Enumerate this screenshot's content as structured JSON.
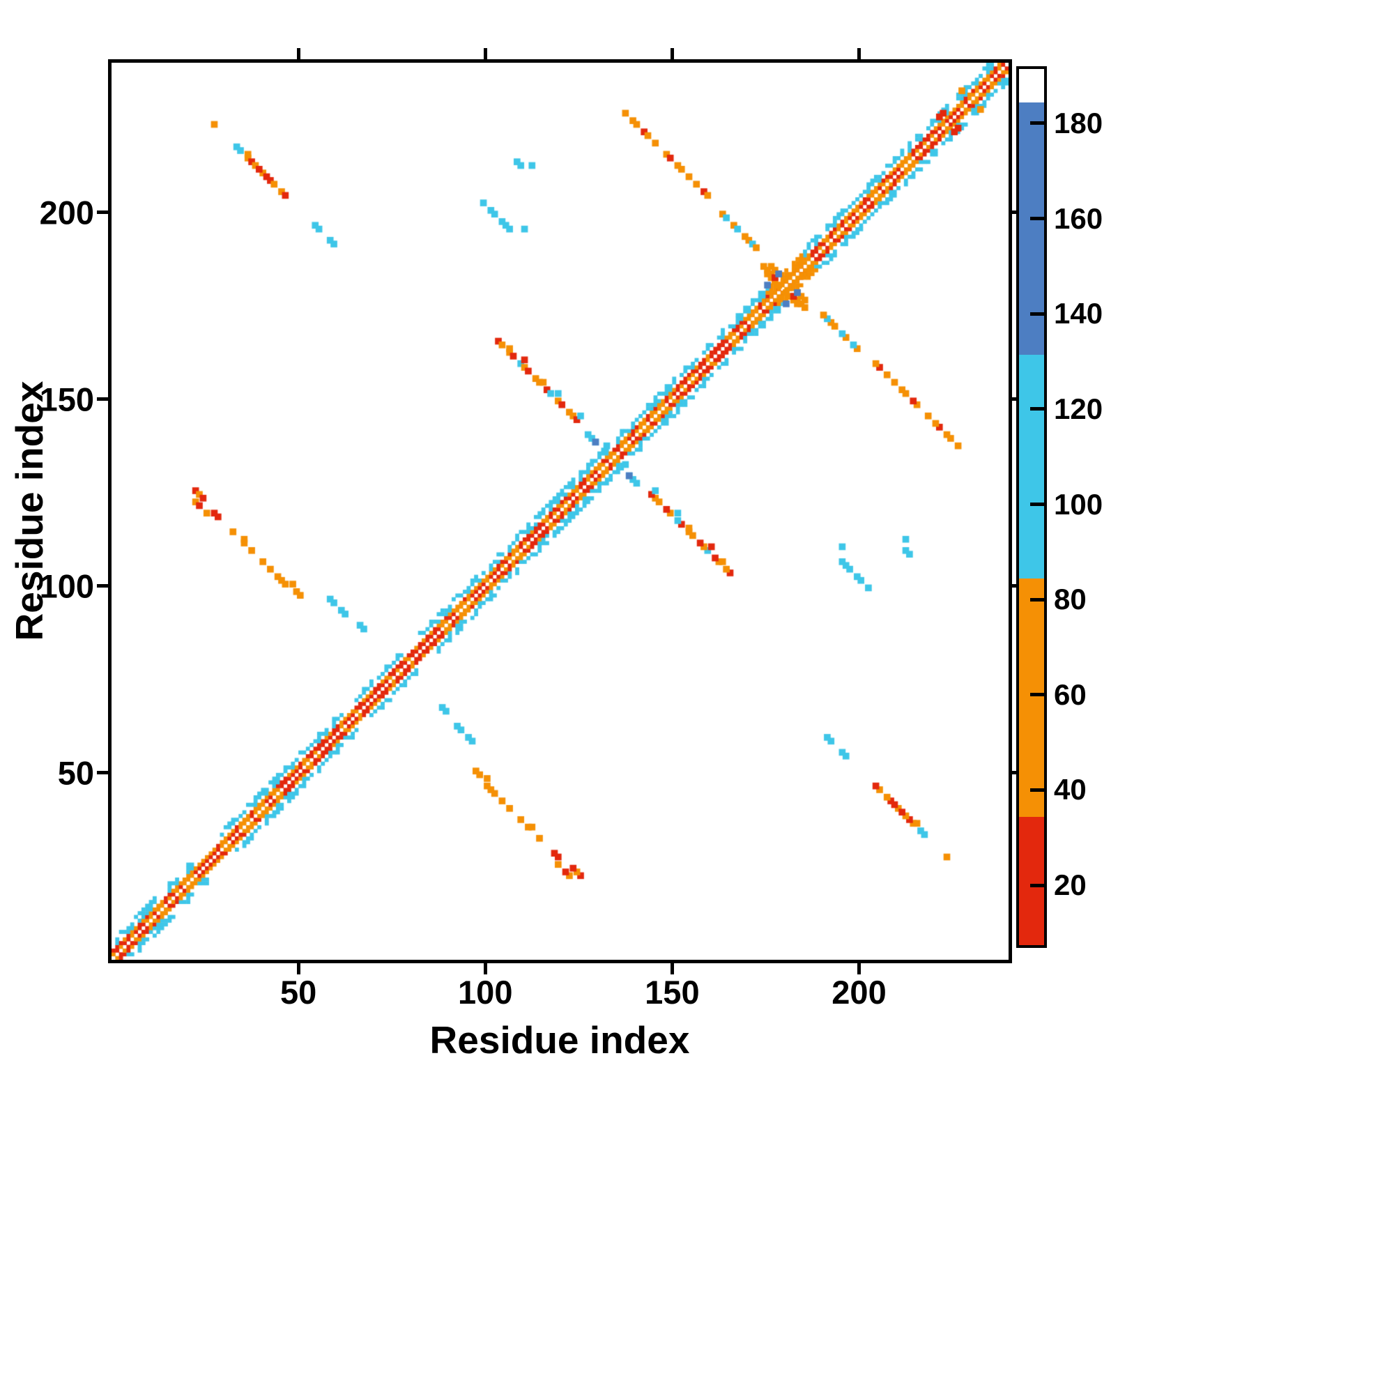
{
  "figure": {
    "xlabel": "Residue index",
    "ylabel": "Residue index"
  },
  "chart_data": {
    "type": "heatmap",
    "title": "",
    "xlabel": "Residue index",
    "ylabel": "Residue index",
    "n_residues": 240,
    "xlim": [
      1,
      240
    ],
    "ylim": [
      1,
      240
    ],
    "xticks": [
      50,
      100,
      150,
      200
    ],
    "yticks": [
      50,
      100,
      150,
      200
    ],
    "grid": false,
    "background": "#ffffff",
    "symmetric": true,
    "colorbar": {
      "position": "right",
      "vmin": 8,
      "vmax": 192,
      "ticks": [
        20,
        40,
        60,
        80,
        100,
        120,
        140,
        160,
        180
      ],
      "stops": [
        {
          "from": 8,
          "to": 35,
          "color": "#e3280d"
        },
        {
          "from": 35,
          "to": 85,
          "color": "#f59005"
        },
        {
          "from": 85,
          "to": 132,
          "color": "#3ec6e8"
        },
        {
          "from": 132,
          "to": 185,
          "color": "#4d7ec2"
        },
        {
          "from": 185,
          "to": 192,
          "color": "#ffffff"
        }
      ]
    },
    "value_key": {
      "red": 20,
      "dark_red": 25,
      "orange": 60,
      "cyan": 100,
      "steel_blue": 160
    },
    "diagonal": {
      "from": 1,
      "to": 240,
      "core_values": [
        20,
        60
      ],
      "flank_value": 100,
      "flank_patches": [
        [
          2,
          12
        ],
        [
          16,
          22
        ],
        [
          30,
          62
        ],
        [
          66,
          78
        ],
        [
          83,
          100
        ],
        [
          102,
          134
        ],
        [
          136,
          176
        ],
        [
          186,
          224
        ],
        [
          227,
          239
        ]
      ],
      "orange_blob": [
        176,
        185
      ],
      "orange_blob_value": 60
    },
    "contacts": [
      {
        "x": 28,
        "y": 224,
        "dx": 1,
        "dy": -1,
        "n": 1,
        "values": [
          60
        ]
      },
      {
        "x": 34,
        "y": 218,
        "dx": 1,
        "dy": -1,
        "n": 14,
        "values": [
          100,
          100,
          0,
          60,
          25,
          60,
          0,
          60,
          25,
          25,
          60,
          0,
          60,
          25
        ]
      },
      {
        "x": 37,
        "y": 216,
        "dx": 0,
        "dy": 0,
        "n": 1,
        "values": [
          60
        ]
      },
      {
        "x": 40,
        "y": 212,
        "dx": 0,
        "dy": 0,
        "n": 1,
        "values": [
          25
        ]
      },
      {
        "x": 55,
        "y": 197,
        "dx": 1,
        "dy": -1,
        "n": 2,
        "values": [
          100,
          100
        ]
      },
      {
        "x": 59,
        "y": 193,
        "dx": 1,
        "dy": -1,
        "n": 2,
        "values": [
          100,
          100
        ]
      },
      {
        "x": 100,
        "y": 203,
        "dx": 1,
        "dy": -1,
        "n": 8,
        "values": [
          100,
          0,
          100,
          100,
          0,
          100,
          100,
          100
        ]
      },
      {
        "x": 111,
        "y": 196,
        "dx": 0,
        "dy": 0,
        "n": 1,
        "values": [
          100
        ]
      },
      {
        "x": 109,
        "y": 214,
        "dx": 1,
        "dy": -1,
        "n": 2,
        "values": [
          100,
          100
        ]
      },
      {
        "x": 113,
        "y": 213,
        "dx": 0,
        "dy": 0,
        "n": 1,
        "values": [
          100
        ]
      },
      {
        "x": 138,
        "y": 227,
        "dx": 1,
        "dy": -1,
        "n": 24,
        "values": [
          60,
          0,
          60,
          60,
          0,
          25,
          60,
          0,
          60,
          0,
          0,
          60,
          25,
          0,
          60,
          60,
          0,
          60,
          0,
          60,
          0,
          25,
          60,
          0
        ]
      },
      {
        "x": 164,
        "y": 200,
        "dx": 1,
        "dy": -1,
        "n": 10,
        "values": [
          60,
          100,
          0,
          60,
          100,
          0,
          60,
          60,
          100,
          60
        ]
      },
      {
        "x": 175,
        "y": 186,
        "dx": 1,
        "dy": -1,
        "n": 3,
        "values": [
          60,
          60,
          60
        ]
      },
      {
        "x": 176,
        "y": 184,
        "dx": 1,
        "dy": -1,
        "n": 4,
        "values": [
          60,
          60,
          60,
          60
        ]
      },
      {
        "x": 177,
        "y": 186,
        "dx": 1,
        "dy": -1,
        "n": 3,
        "values": [
          60,
          60,
          60
        ]
      },
      {
        "x": 178,
        "y": 183,
        "dx": 0,
        "dy": 0,
        "n": 1,
        "values": [
          25
        ]
      },
      {
        "x": 176,
        "y": 181,
        "dx": 0,
        "dy": 0,
        "n": 1,
        "values": [
          160
        ]
      },
      {
        "x": 179,
        "y": 184,
        "dx": 0,
        "dy": 0,
        "n": 1,
        "values": [
          160
        ]
      },
      {
        "x": 104,
        "y": 166,
        "dx": 1,
        "dy": -1,
        "n": 22,
        "values": [
          25,
          60,
          0,
          60,
          25,
          0,
          100,
          60,
          25,
          0,
          60,
          60,
          0,
          25,
          100,
          0,
          60,
          25,
          0,
          60,
          60,
          25
        ]
      },
      {
        "x": 107,
        "y": 164,
        "dx": 0,
        "dy": 0,
        "n": 1,
        "values": [
          60
        ]
      },
      {
        "x": 111,
        "y": 161,
        "dx": 0,
        "dy": 0,
        "n": 1,
        "values": [
          25
        ]
      },
      {
        "x": 116,
        "y": 155,
        "dx": 0,
        "dy": 0,
        "n": 1,
        "values": [
          60
        ]
      },
      {
        "x": 120,
        "y": 152,
        "dx": 0,
        "dy": 0,
        "n": 1,
        "values": [
          100
        ]
      },
      {
        "x": 126,
        "y": 146,
        "dx": 0,
        "dy": 0,
        "n": 1,
        "values": [
          100
        ]
      },
      {
        "x": 128,
        "y": 141,
        "dx": 1,
        "dy": -1,
        "n": 3,
        "values": [
          100,
          100,
          100
        ]
      },
      {
        "x": 130,
        "y": 139,
        "dx": 0,
        "dy": 0,
        "n": 1,
        "values": [
          160
        ]
      },
      {
        "x": 133,
        "y": 138,
        "dx": 0,
        "dy": 0,
        "n": 1,
        "values": [
          100
        ]
      },
      {
        "x": 23,
        "y": 126,
        "dx": 1,
        "dy": -1,
        "n": 3,
        "values": [
          25,
          60,
          25
        ]
      },
      {
        "x": 23,
        "y": 123,
        "dx": 1,
        "dy": -1,
        "n": 4,
        "values": [
          60,
          25,
          0,
          60
        ]
      },
      {
        "x": 28,
        "y": 120,
        "dx": 1,
        "dy": -1,
        "n": 2,
        "values": [
          25,
          25
        ]
      },
      {
        "x": 33,
        "y": 115,
        "dx": 1,
        "dy": -1,
        "n": 16,
        "values": [
          60,
          0,
          0,
          60,
          0,
          60,
          0,
          0,
          60,
          0,
          60,
          0,
          0,
          60,
          60,
          0
        ]
      },
      {
        "x": 36,
        "y": 113,
        "dx": 0,
        "dy": 0,
        "n": 1,
        "values": [
          60
        ]
      },
      {
        "x": 45,
        "y": 103,
        "dx": 0,
        "dy": 0,
        "n": 1,
        "values": [
          60
        ]
      },
      {
        "x": 49,
        "y": 101,
        "dx": 0,
        "dy": 0,
        "n": 1,
        "values": [
          60
        ]
      },
      {
        "x": 50,
        "y": 99,
        "dx": 1,
        "dy": -1,
        "n": 2,
        "values": [
          60,
          60
        ]
      },
      {
        "x": 59,
        "y": 97,
        "dx": 1,
        "dy": -1,
        "n": 2,
        "values": [
          100,
          100
        ]
      },
      {
        "x": 62,
        "y": 94,
        "dx": 1,
        "dy": -1,
        "n": 2,
        "values": [
          100,
          100
        ]
      },
      {
        "x": 67,
        "y": 90,
        "dx": 1,
        "dy": -1,
        "n": 2,
        "values": [
          100,
          100
        ]
      },
      {
        "x": 222,
        "y": 226,
        "dx": 1,
        "dy": 1,
        "n": 2,
        "values": [
          25,
          25
        ]
      },
      {
        "x": 228,
        "y": 233,
        "dx": 0,
        "dy": 0,
        "n": 1,
        "values": [
          60
        ]
      }
    ]
  }
}
